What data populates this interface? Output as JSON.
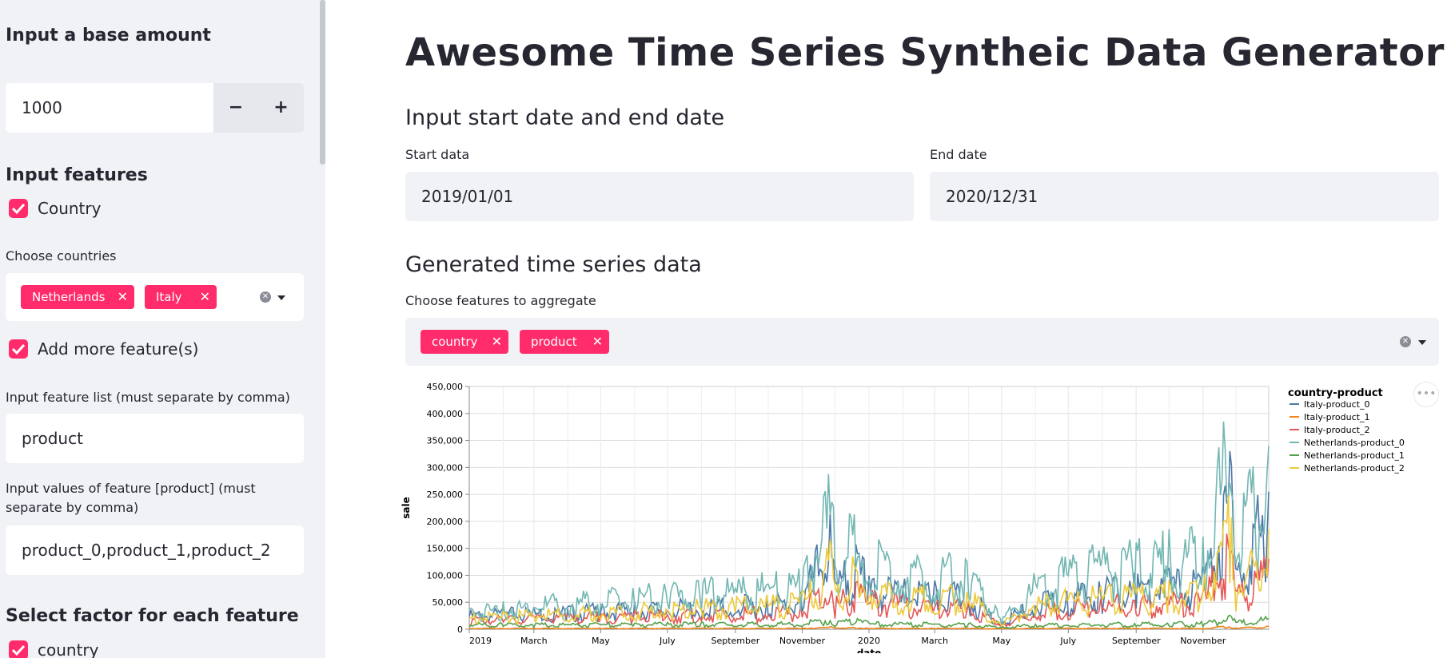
{
  "sidebar": {
    "base_amount_heading": "Input a base amount",
    "base_amount_value": "1000",
    "minus_label": "−",
    "plus_label": "+",
    "features_heading": "Input features",
    "country_checkbox_label": "Country",
    "choose_countries_label": "Choose countries",
    "countries": [
      "Netherlands",
      "Italy"
    ],
    "add_more_label": "Add more feature(s)",
    "feature_list_label": "Input feature list (must separate by comma)",
    "feature_list_value": "product",
    "feature_values_label": "Input values of feature [product] (must separate by comma)",
    "feature_values_value": "product_0,product_1,product_2",
    "factor_heading": "Select factor for each feature",
    "factor_country_label": "country"
  },
  "main": {
    "title": "Awesome Time Series Syntheic Data Generator",
    "date_heading": "Input start date and end date",
    "start_label": "Start data",
    "start_value": "2019/01/01",
    "end_label": "End date",
    "end_value": "2020/12/31",
    "generated_heading": "Generated time series data",
    "aggregate_label": "Choose features to aggregate",
    "aggregate_tags": [
      "country",
      "product"
    ]
  },
  "colors": {
    "accent": "#ff2b6b",
    "sidebar_bg": "#f0f2f6"
  },
  "chart_data": {
    "type": "line",
    "xlabel": "date",
    "ylabel": "sale",
    "ylim": [
      0,
      450000
    ],
    "yticks": [
      "0",
      "50,000",
      "100,000",
      "150,000",
      "200,000",
      "250,000",
      "300,000",
      "350,000",
      "400,000",
      "450,000"
    ],
    "xticks": [
      "2019",
      "March",
      "May",
      "July",
      "September",
      "November",
      "2020",
      "March",
      "May",
      "July",
      "September",
      "November"
    ],
    "legend_title": "country-product",
    "legend_position": "right",
    "grid": true,
    "x": [
      "2019-01",
      "2019-02",
      "2019-03",
      "2019-04",
      "2019-05",
      "2019-06",
      "2019-07",
      "2019-08",
      "2019-09",
      "2019-10",
      "2019-11",
      "2019-11-28",
      "2019-12",
      "2019-12-20",
      "2020-01",
      "2020-02",
      "2020-03",
      "2020-04",
      "2020-05",
      "2020-06",
      "2020-07",
      "2020-08",
      "2020-09",
      "2020-10",
      "2020-11",
      "2020-11-27",
      "2020-12",
      "2020-12-31"
    ],
    "series": [
      {
        "name": "Italy-product_0",
        "color": "#4c78a8",
        "values": [
          30000,
          33000,
          36000,
          38000,
          41000,
          43000,
          46000,
          48000,
          52000,
          55000,
          60000,
          205000,
          75000,
          150000,
          90000,
          80000,
          75000,
          70000,
          15000,
          55000,
          70000,
          80000,
          88000,
          95000,
          100000,
          295000,
          110000,
          255000
        ]
      },
      {
        "name": "Italy-product_1",
        "color": "#f58518",
        "values": [
          2000,
          2000,
          2000,
          2000,
          2000,
          2000,
          2000,
          2000,
          2000,
          2000,
          2000,
          4000,
          3000,
          3000,
          2000,
          2000,
          2000,
          2000,
          1000,
          2000,
          2000,
          2000,
          2000,
          2000,
          2000,
          6000,
          3000,
          5000
        ]
      },
      {
        "name": "Italy-product_2",
        "color": "#e45756",
        "values": [
          20000,
          22000,
          24000,
          26000,
          27000,
          29000,
          31000,
          32000,
          35000,
          37000,
          40000,
          100000,
          50000,
          80000,
          60000,
          55000,
          50000,
          45000,
          10000,
          38000,
          45000,
          50000,
          55000,
          58000,
          62000,
          165000,
          70000,
          130000
        ]
      },
      {
        "name": "Netherlands-product_0",
        "color": "#72b7b2",
        "values": [
          40000,
          45000,
          52000,
          58000,
          63000,
          68000,
          73000,
          78000,
          83000,
          88000,
          95000,
          265000,
          120000,
          215000,
          140000,
          130000,
          125000,
          115000,
          20000,
          90000,
          120000,
          135000,
          145000,
          155000,
          165000,
          415000,
          175000,
          340000
        ]
      },
      {
        "name": "Netherlands-product_1",
        "color": "#54a24b",
        "values": [
          10000,
          10000,
          10000,
          10000,
          10000,
          11000,
          11000,
          11000,
          11000,
          11000,
          12000,
          22000,
          13000,
          18000,
          12000,
          11000,
          11000,
          10000,
          4000,
          9000,
          10000,
          11000,
          11000,
          12000,
          12000,
          25000,
          13000,
          20000
        ]
      },
      {
        "name": "Netherlands-product_2",
        "color": "#eeca3b",
        "values": [
          25000,
          28000,
          32000,
          35000,
          38000,
          41000,
          44000,
          47000,
          50000,
          53000,
          57000,
          145000,
          70000,
          120000,
          85000,
          78000,
          73000,
          68000,
          12000,
          50000,
          62000,
          68000,
          72000,
          75000,
          80000,
          240000,
          90000,
          185000
        ]
      }
    ]
  }
}
